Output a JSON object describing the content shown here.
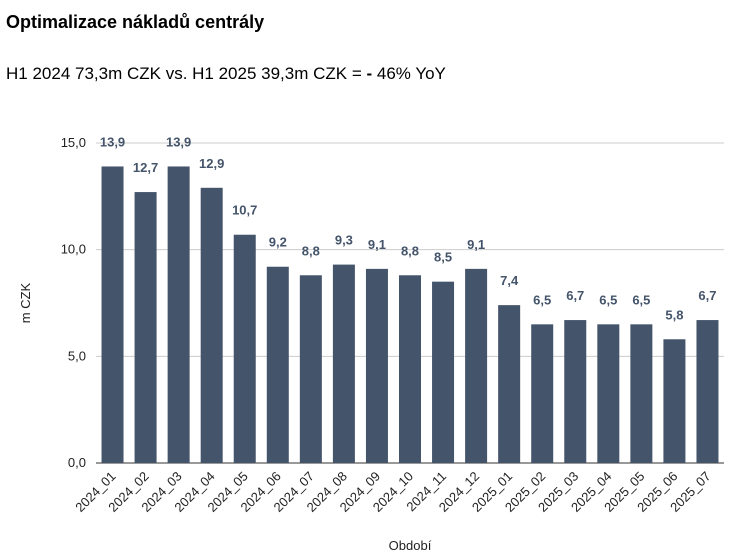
{
  "title": "Optimalizace nákladů centrály",
  "subtitle": {
    "prefix": "H1 2024 73,3m CZK vs. H1 2025 39,3m CZK = ",
    "dash": "-",
    "suffix": " 46% YoY"
  },
  "chart_data": {
    "type": "bar",
    "categories": [
      "2024_01",
      "2024_02",
      "2024_03",
      "2024_04",
      "2024_05",
      "2024_06",
      "2024_07",
      "2024_08",
      "2024_09",
      "2024_10",
      "2024_11",
      "2024_12",
      "2025_01",
      "2025_02",
      "2025_03",
      "2025_04",
      "2025_05",
      "2025_06",
      "2025_07"
    ],
    "values": [
      13.9,
      12.7,
      13.9,
      12.9,
      10.7,
      9.2,
      8.8,
      9.3,
      9.1,
      8.8,
      8.5,
      9.1,
      7.4,
      6.5,
      6.7,
      6.5,
      6.5,
      5.8,
      6.7
    ],
    "value_labels": [
      "13,9",
      "12,7",
      "13,9",
      "12,9",
      "10,7",
      "9,2",
      "8,8",
      "9,3",
      "9,1",
      "8,8",
      "8,5",
      "9,1",
      "7,4",
      "6,5",
      "6,7",
      "6,5",
      "6,5",
      "5,8",
      "6,7"
    ],
    "yticks": [
      0,
      5,
      10,
      15
    ],
    "ytick_labels": [
      "0,0",
      "5,0",
      "10,0",
      "15,0"
    ],
    "ylim": [
      0,
      15
    ],
    "xlabel": "Období",
    "ylabel": "m CZK",
    "bar_color": "#44546a",
    "grid": true,
    "legend": "none"
  }
}
